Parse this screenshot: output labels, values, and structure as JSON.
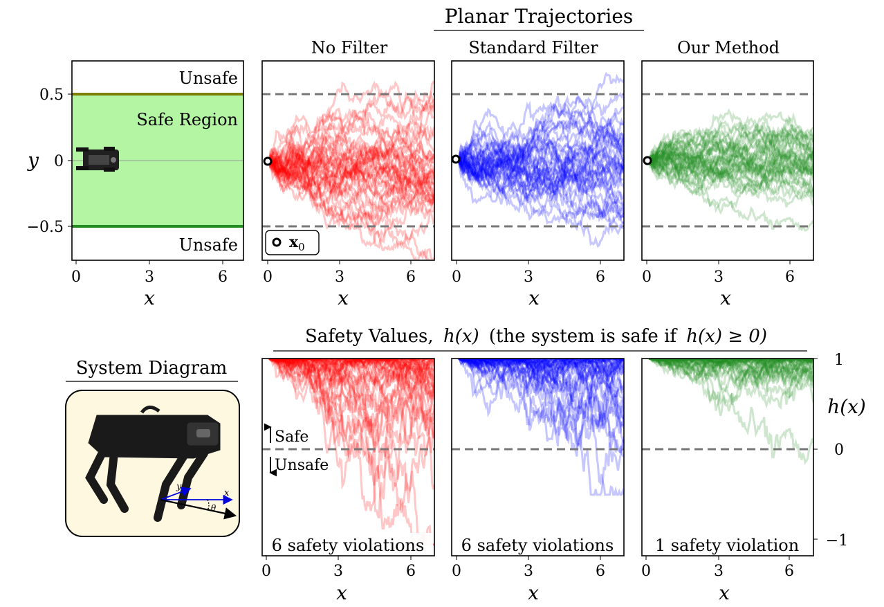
{
  "figure": {
    "top_heading": "Planar Trajectories",
    "bottom_heading_prefix": "Safety Values,",
    "bottom_heading_hx": "h(x)",
    "bottom_heading_suffix": "(the system is safe if",
    "bottom_heading_cond": "h(x) ≥ 0)",
    "diagram_heading": "System Diagram",
    "robot_axis_x": "x",
    "robot_axis_y": "y",
    "robot_axis_theta": "θ"
  },
  "colors": {
    "no_filter": "#ff0000",
    "standard_filter": "#0000ff",
    "our_method": "#228b22",
    "safe_region_fill": "#b3f5a3",
    "upper_boundary": "#808000",
    "lower_boundary": "#228b22",
    "boundary_dash": "#777777",
    "diagram_bg": "#fff8e1"
  },
  "chart_data": [
    {
      "type": "line",
      "panel": "environment",
      "region_labels": [
        "Unsafe",
        "Safe Region",
        "Unsafe"
      ],
      "xlabel": "x",
      "ylabel": "y",
      "xlim": [
        -0.3,
        7
      ],
      "ylim": [
        -0.75,
        0.75
      ],
      "xticks": [
        "0",
        "3",
        "6"
      ],
      "yticks": [
        "0.5",
        "0",
        "−0.5"
      ],
      "safe_bounds": [
        -0.5,
        0.5
      ]
    },
    {
      "type": "line",
      "panel": "trajectories",
      "title": "No Filter",
      "xlabel": "x",
      "xlim": [
        -0.3,
        7
      ],
      "ylim": [
        -0.75,
        0.75
      ],
      "xticks": [
        "0",
        "3",
        "6"
      ],
      "bounds": [
        -0.5,
        0.5
      ],
      "legend": "x0",
      "start_point": [
        0,
        0
      ],
      "approx_trajectory_count": 40,
      "spread_at_x7": [
        -0.72,
        0.5
      ]
    },
    {
      "type": "line",
      "panel": "trajectories",
      "title": "Standard Filter",
      "xlabel": "x",
      "xlim": [
        -0.3,
        7
      ],
      "ylim": [
        -0.75,
        0.75
      ],
      "xticks": [
        "0",
        "3",
        "6"
      ],
      "bounds": [
        -0.5,
        0.5
      ],
      "start_point": [
        0,
        0
      ],
      "approx_trajectory_count": 40,
      "spread_at_x7": [
        -0.62,
        0.56
      ]
    },
    {
      "type": "line",
      "panel": "trajectories",
      "title": "Our Method",
      "xlabel": "x",
      "xlim": [
        -0.3,
        7
      ],
      "ylim": [
        -0.75,
        0.75
      ],
      "xticks": [
        "0",
        "3",
        "6"
      ],
      "bounds": [
        -0.5,
        0.5
      ],
      "start_point": [
        0,
        0
      ],
      "approx_trajectory_count": 40,
      "spread_at_x7": [
        -0.52,
        0.46
      ]
    },
    {
      "type": "line",
      "panel": "safety_values",
      "xlabel": "x",
      "xlim": [
        -0.3,
        7
      ],
      "ylim": [
        -1.1,
        1
      ],
      "xticks": [
        "0",
        "3",
        "6"
      ],
      "threshold": 0,
      "annotation_up": "Safe",
      "annotation_down": "Unsafe",
      "caption": "6 safety violations",
      "min_value": -0.98
    },
    {
      "type": "line",
      "panel": "safety_values",
      "xlabel": "x",
      "xlim": [
        -0.3,
        7
      ],
      "ylim": [
        -1.1,
        1
      ],
      "xticks": [
        "0",
        "3",
        "6"
      ],
      "threshold": 0,
      "caption": "6 safety violations",
      "min_value": -0.45
    },
    {
      "type": "line",
      "panel": "safety_values",
      "xlabel": "x",
      "ylabel": "h(x)",
      "xlim": [
        -0.3,
        7
      ],
      "ylim": [
        -1.1,
        1
      ],
      "xticks": [
        "0",
        "3",
        "6"
      ],
      "yticks": [
        "1",
        "0",
        "−1"
      ],
      "threshold": 0,
      "caption": "1 safety violation",
      "min_value": -0.15
    }
  ]
}
